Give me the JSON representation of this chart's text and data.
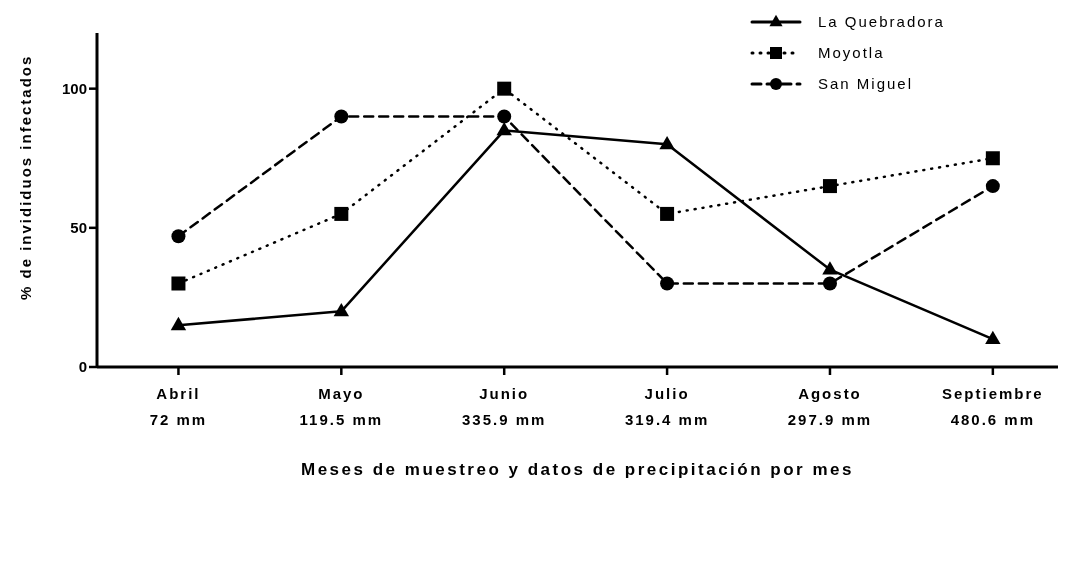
{
  "chart_data": {
    "type": "line",
    "xlabel": "Meses de muestreo y datos de precipitación por mes",
    "ylabel": "% de invididuos infectados",
    "categories": [
      "Abril\n72 mm",
      "Mayo\n119.5 mm",
      "Junio\n335.9 mm",
      "Julio\n319.4 mm",
      "Agosto\n297.9 mm",
      "Septiembre\n480.6 mm"
    ],
    "series": [
      {
        "name": "La Quebradora",
        "color": "#000000",
        "marker": "triangle",
        "line_style": "solid",
        "values": [
          15,
          20,
          85,
          80,
          35,
          10
        ]
      },
      {
        "name": "Moyotla",
        "color": "#000000",
        "marker": "square",
        "line_style": "dotted",
        "values": [
          30,
          55,
          100,
          55,
          65,
          75
        ]
      },
      {
        "name": "San Miguel",
        "color": "#000000",
        "marker": "circle",
        "line_style": "dashed",
        "values": [
          47,
          90,
          90,
          30,
          30,
          65
        ]
      }
    ],
    "ylim": [
      0,
      120
    ],
    "yticks": [
      0,
      50,
      100
    ],
    "grid": false,
    "legend": "top right"
  }
}
